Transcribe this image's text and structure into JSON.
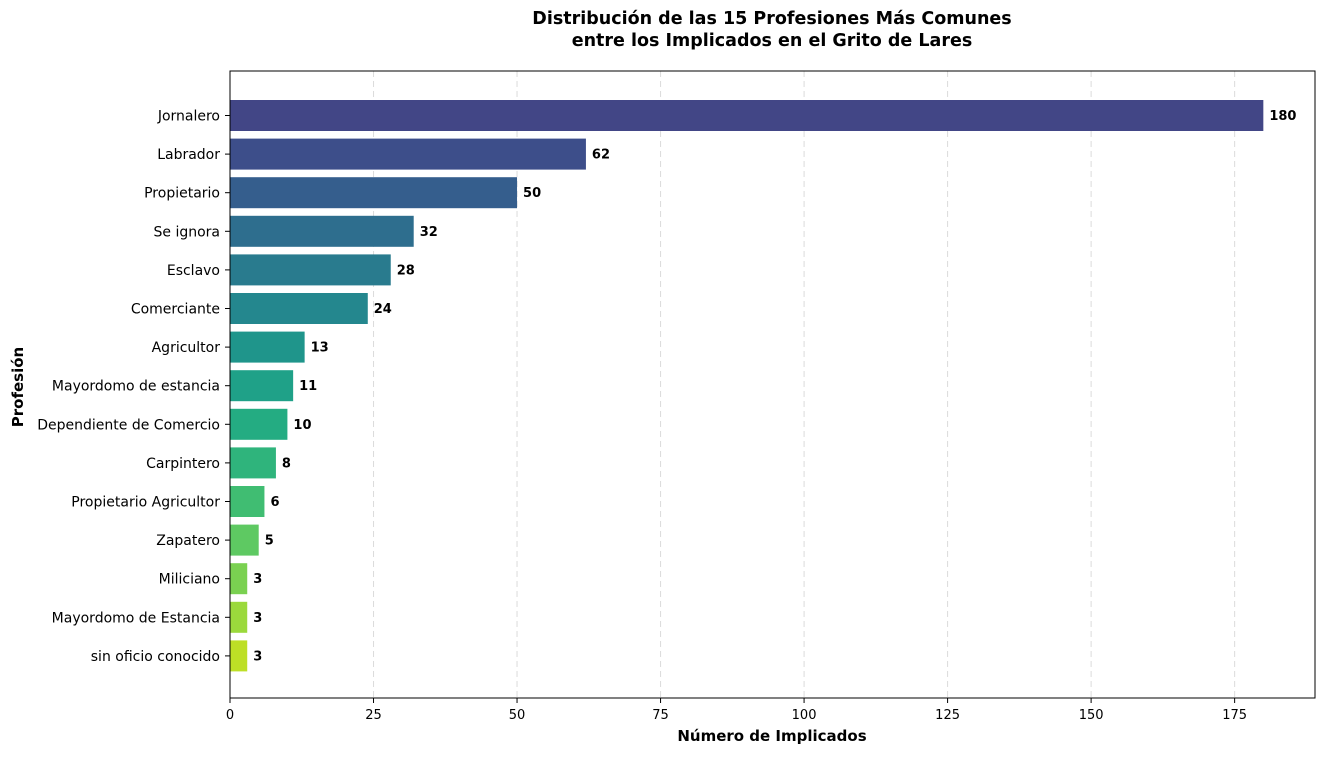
{
  "chart_data": {
    "type": "bar",
    "orientation": "horizontal",
    "title": "Distribución de las 15 Profesiones Más Comunes\nentre los Implicados en el Grito de Lares",
    "title_lines": [
      "Distribución de las 15 Profesiones Más Comunes",
      "entre los Implicados en el Grito de Lares"
    ],
    "xlabel": "Número de Implicados",
    "ylabel": "Profesión",
    "xlim": [
      0,
      189
    ],
    "x_ticks": [
      0,
      25,
      50,
      75,
      100,
      125,
      150,
      175
    ],
    "grid": "x-dashed",
    "categories": [
      "Jornalero",
      "Labrador",
      "Propietario",
      "Se ignora",
      "Esclavo",
      "Comerciante",
      "Agricultor",
      "Mayordomo de estancia",
      "Dependiente de Comercio",
      "Carpintero",
      "Propietario Agricultor",
      "Zapatero",
      "Miliciano",
      "Mayordomo de Estancia",
      "sin oficio conocido"
    ],
    "values": [
      180,
      62,
      50,
      32,
      28,
      24,
      13,
      11,
      10,
      8,
      6,
      5,
      3,
      3,
      3
    ],
    "colors": [
      "#424686",
      "#3d4e8a",
      "#355e8d",
      "#2e6e8e",
      "#297b8e",
      "#24878e",
      "#1f958b",
      "#1fa188",
      "#24ac82",
      "#2fb47c",
      "#40bd72",
      "#5ec962",
      "#7ad151",
      "#9bd93c",
      "#bddf26"
    ]
  }
}
